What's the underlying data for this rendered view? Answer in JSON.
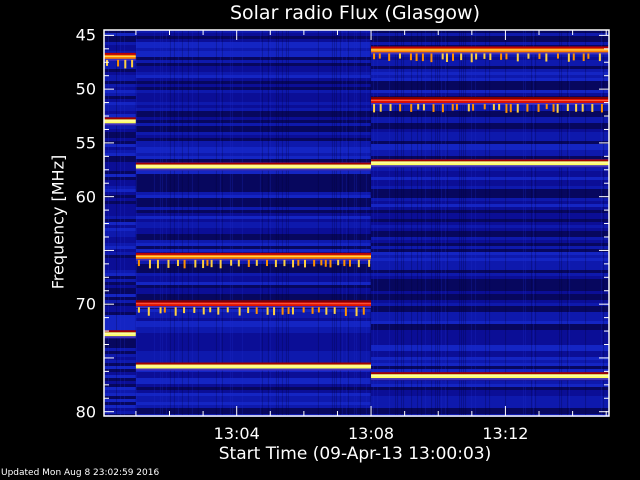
{
  "chart_data": {
    "type": "heatmap",
    "title": "Solar radio Flux (Glasgow)",
    "xlabel": "Start Time (09-Apr-13 13:00:03)",
    "ylabel": "Frequency [MHz]",
    "xlim": [
      "13:00:03",
      "13:15:05"
    ],
    "ylim": [
      80.4,
      44.5
    ],
    "x_ticks": [
      "13:04",
      "13:08",
      "13:12"
    ],
    "y_ticks": [
      45,
      50,
      55,
      60,
      70,
      80
    ],
    "colormap": [
      "#000020",
      "#0000a0",
      "#2040ff",
      "#a00000",
      "#ff2000",
      "#ff9000",
      "#ffff40",
      "#ffffff"
    ],
    "segments": [
      {
        "start": "13:00:03",
        "end": "13:01:00",
        "bands": [
          {
            "freq": 47.0,
            "level": "orange"
          },
          {
            "freq": 53.0,
            "level": "yellow"
          },
          {
            "freq": 72.8,
            "level": "yellow"
          }
        ]
      },
      {
        "start": "13:01:00",
        "end": "13:08:00",
        "bands": [
          {
            "freq": 57.2,
            "level": "yellow"
          },
          {
            "freq": 65.6,
            "level": "orange"
          },
          {
            "freq": 70.0,
            "level": "red"
          },
          {
            "freq": 75.8,
            "level": "yellow"
          }
        ]
      },
      {
        "start": "13:08:00",
        "end": "13:15:05",
        "bands": [
          {
            "freq": 46.4,
            "level": "orange"
          },
          {
            "freq": 51.1,
            "level": "red"
          },
          {
            "freq": 56.9,
            "level": "yellow"
          },
          {
            "freq": 76.7,
            "level": "yellow"
          }
        ]
      }
    ]
  },
  "footer": {
    "updated": "Updated Mon Aug  8 23:02:59 2016"
  }
}
